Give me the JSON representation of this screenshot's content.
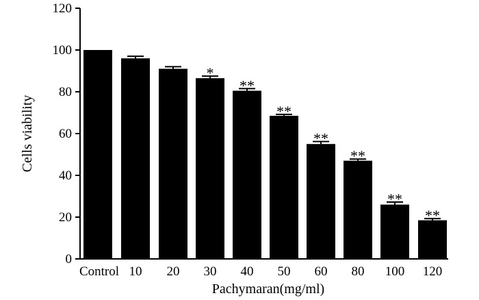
{
  "chart_data": {
    "type": "bar",
    "title": "",
    "xlabel": "Pachymaran(mg/ml)",
    "ylabel": "Cells viability",
    "ylim": [
      0,
      120
    ],
    "yticks": [
      0,
      20,
      40,
      60,
      80,
      100,
      120
    ],
    "categories": [
      "Control",
      "10",
      "20",
      "30",
      "40",
      "50",
      "60",
      "80",
      "100",
      "120"
    ],
    "values": [
      100,
      96,
      91,
      86.5,
      80.5,
      68.5,
      55,
      47,
      26,
      18.5
    ],
    "error": [
      0,
      1,
      1,
      1,
      1,
      0.7,
      1.2,
      0.8,
      1.2,
      0.8
    ],
    "significance": [
      "",
      "",
      "",
      "*",
      "**",
      "**",
      "**",
      "**",
      "**",
      "**"
    ],
    "grid": false,
    "bar_color": "#000000"
  }
}
